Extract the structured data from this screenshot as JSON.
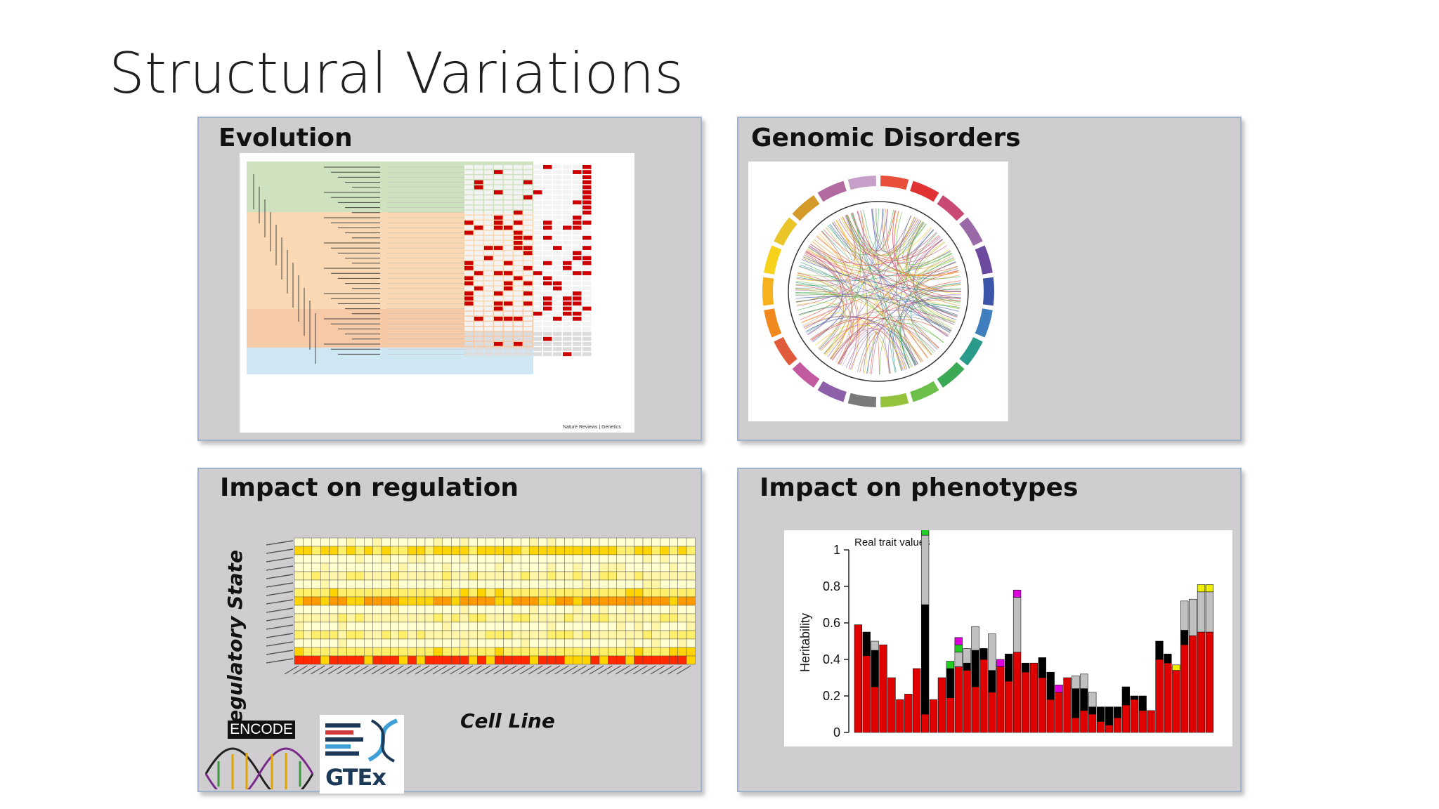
{
  "slide": {
    "title": "Structural Variations"
  },
  "panels": {
    "evolution": {
      "title": "Evolution",
      "credit": "Nature Reviews | Genetics"
    },
    "genomic_disorders": {
      "title": "Genomic Disorders"
    },
    "regulation": {
      "title": "Impact on regulation",
      "y_label": "Regulatory State",
      "x_label": "Cell Line",
      "logo_encode": "ENCODE",
      "logo_gtex": "GTEx"
    },
    "phenotypes": {
      "title": "Impact on phenotypes"
    }
  },
  "chart_data": {
    "type": "bar",
    "title": "Real trait values",
    "xlabel": "",
    "ylabel": "Heritability",
    "ylim": [
      0,
      1
    ],
    "yticks": [
      "0",
      "0.2",
      "0.4",
      "0.6",
      "0.8",
      "1"
    ],
    "grid": false,
    "series": [
      {
        "name": "",
        "color": "#e00000",
        "values": [
          0.59,
          0.42,
          0.25,
          0.48,
          0.3,
          0.18,
          0.21,
          0.35,
          0.1,
          0.18,
          0.3,
          0.19,
          0.36,
          0.34,
          0.25,
          0.4,
          0.22,
          0.36,
          0.28,
          0.44,
          0.33,
          0.38,
          0.3,
          0.18,
          0.22,
          0.3,
          0.08,
          0.12,
          0.1,
          0.06,
          0.04,
          0.08,
          0.15,
          0.18,
          0.12,
          0.12,
          0.4,
          0.38,
          0.34,
          0.48,
          0.53,
          0.55,
          0.55
        ]
      },
      {
        "name": "",
        "color": "#000000",
        "values": [
          0.0,
          0.13,
          0.2,
          0.0,
          0.0,
          0.0,
          0.0,
          0.0,
          0.6,
          0.0,
          0.0,
          0.16,
          0.0,
          0.04,
          0.2,
          0.06,
          0.12,
          0.0,
          0.15,
          0.0,
          0.05,
          0.0,
          0.11,
          0.15,
          0.0,
          0.0,
          0.16,
          0.12,
          0.04,
          0.08,
          0.1,
          0.06,
          0.1,
          0.02,
          0.08,
          0.0,
          0.1,
          0.05,
          0.0,
          0.08,
          0.0,
          0.0,
          0.0
        ]
      },
      {
        "name": "",
        "color": "#c0c0c0",
        "values": [
          0.0,
          0.0,
          0.05,
          0.0,
          0.0,
          0.0,
          0.0,
          0.0,
          0.38,
          0.0,
          0.0,
          0.0,
          0.08,
          0.08,
          0.13,
          0.0,
          0.2,
          0.0,
          0.0,
          0.3,
          0.0,
          0.0,
          0.0,
          0.0,
          0.0,
          0.0,
          0.07,
          0.08,
          0.08,
          0.0,
          0.0,
          0.0,
          0.0,
          0.0,
          0.0,
          0.0,
          0.0,
          0.0,
          0.0,
          0.16,
          0.2,
          0.22,
          0.22
        ]
      },
      {
        "name": "",
        "color": "#22cc22",
        "values": [
          0.0,
          0.0,
          0.0,
          0.0,
          0.0,
          0.0,
          0.0,
          0.0,
          0.04,
          0.0,
          0.0,
          0.04,
          0.04,
          0.0,
          0.0,
          0.0,
          0.0,
          0.0,
          0.0,
          0.0,
          0.0,
          0.0,
          0.0,
          0.0,
          0.0,
          0.0,
          0.0,
          0.0,
          0.0,
          0.0,
          0.0,
          0.0,
          0.0,
          0.0,
          0.0,
          0.0,
          0.0,
          0.0,
          0.0,
          0.0,
          0.0,
          0.0,
          0.0
        ]
      },
      {
        "name": "",
        "color": "#dd00dd",
        "values": [
          0.0,
          0.0,
          0.0,
          0.0,
          0.0,
          0.0,
          0.0,
          0.0,
          0.0,
          0.0,
          0.0,
          0.0,
          0.04,
          0.0,
          0.0,
          0.0,
          0.0,
          0.04,
          0.0,
          0.04,
          0.0,
          0.0,
          0.0,
          0.0,
          0.04,
          0.0,
          0.0,
          0.0,
          0.0,
          0.0,
          0.0,
          0.0,
          0.0,
          0.0,
          0.0,
          0.0,
          0.0,
          0.0,
          0.0,
          0.0,
          0.0,
          0.0,
          0.0
        ]
      },
      {
        "name": "",
        "color": "#eeee00",
        "values": [
          0.0,
          0.0,
          0.0,
          0.0,
          0.0,
          0.0,
          0.0,
          0.0,
          0.0,
          0.0,
          0.0,
          0.0,
          0.0,
          0.0,
          0.0,
          0.0,
          0.0,
          0.0,
          0.0,
          0.0,
          0.0,
          0.0,
          0.0,
          0.0,
          0.0,
          0.0,
          0.0,
          0.0,
          0.0,
          0.0,
          0.0,
          0.0,
          0.0,
          0.0,
          0.0,
          0.0,
          0.0,
          0.0,
          0.03,
          0.0,
          0.0,
          0.04,
          0.04
        ]
      }
    ]
  }
}
